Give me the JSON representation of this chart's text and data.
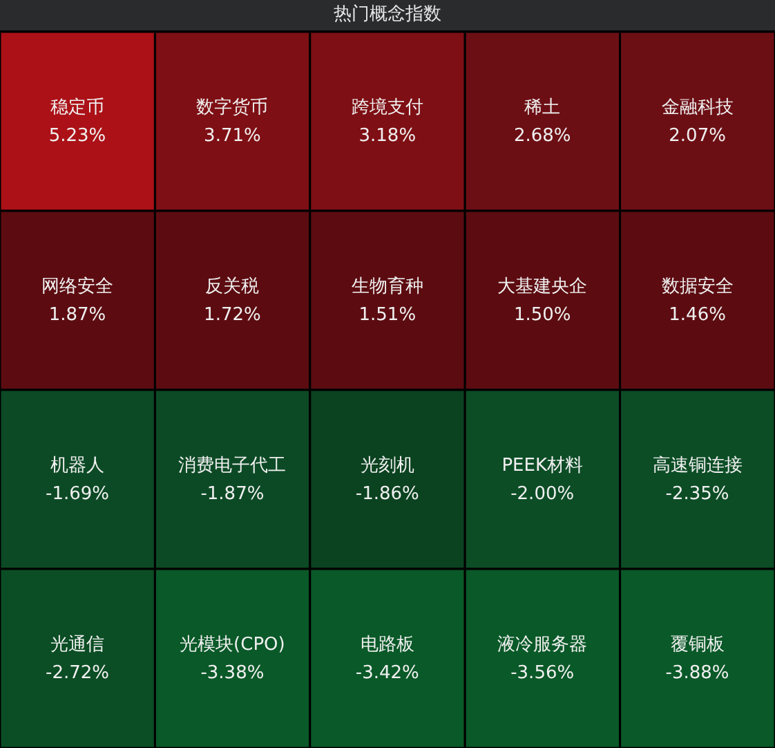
{
  "chart_data": {
    "type": "other",
    "title": "热门概念指数",
    "categories": [
      "稳定币",
      "数字货币",
      "跨境支付",
      "稀土",
      "金融科技",
      "网络安全",
      "反关税",
      "生物育种",
      "大基建央企",
      "数据安全",
      "机器人",
      "消费电子代工",
      "光刻机",
      "PEEK材料",
      "高速铜连接",
      "光通信",
      "光模块(CPO)",
      "电路板",
      "液冷服务器",
      "覆铜板"
    ],
    "values": [
      5.23,
      3.71,
      3.18,
      2.68,
      2.07,
      1.87,
      1.72,
      1.51,
      1.5,
      1.46,
      -1.69,
      -1.87,
      -1.86,
      -2.0,
      -2.35,
      -2.72,
      -3.38,
      -3.42,
      -3.56,
      -3.88
    ],
    "value_labels": [
      "5.23%",
      "3.71%",
      "3.18%",
      "2.68%",
      "2.07%",
      "1.87%",
      "1.72%",
      "1.51%",
      "1.50%",
      "1.46%",
      "-1.69%",
      "-1.87%",
      "-1.86%",
      "-2.00%",
      "-2.35%",
      "-2.72%",
      "-3.38%",
      "-3.42%",
      "-3.56%",
      "-3.88%"
    ],
    "colors": [
      "#ab1117",
      "#7e0f14",
      "#7e0f14",
      "#6c0f15",
      "#6c0f15",
      "#5c0c11",
      "#5c0c11",
      "#5c0c11",
      "#5c0c11",
      "#5c0c11",
      "#0c4a25",
      "#0c4a25",
      "#0b4220",
      "#0c4d26",
      "#0c4d26",
      "#0b4d24",
      "#0a5928",
      "#0a5928",
      "#0a5928",
      "#0a5928"
    ]
  }
}
